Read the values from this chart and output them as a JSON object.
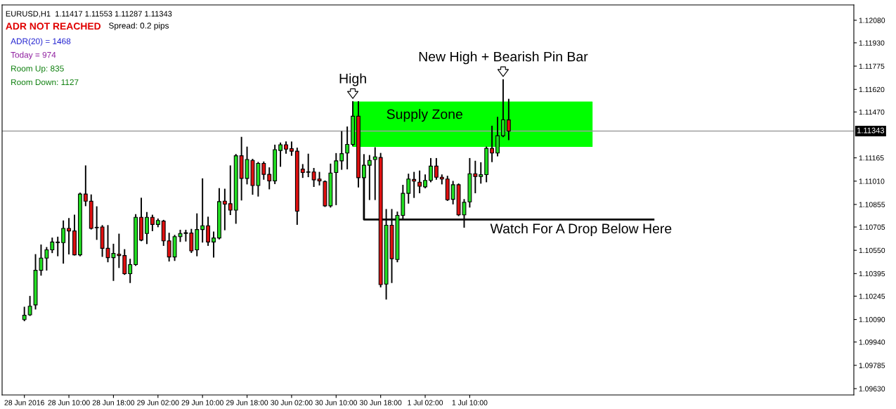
{
  "chart_data": {
    "type": "candlestick",
    "title": "EURUSD,H1  1.11417 1.11553 1.11287 1.11343",
    "x": [
      "2016-06-28T02:00",
      "2016-06-28T03:00",
      "2016-06-28T04:00",
      "2016-06-28T05:00",
      "2016-06-28T06:00",
      "2016-06-28T07:00",
      "2016-06-28T08:00",
      "2016-06-28T09:00",
      "2016-06-28T10:00",
      "2016-06-28T11:00",
      "2016-06-28T12:00",
      "2016-06-28T13:00",
      "2016-06-28T14:00",
      "2016-06-28T15:00",
      "2016-06-28T16:00",
      "2016-06-28T17:00",
      "2016-06-28T18:00",
      "2016-06-28T19:00",
      "2016-06-28T20:00",
      "2016-06-28T21:00",
      "2016-06-28T22:00",
      "2016-06-28T23:00",
      "2016-06-29T00:00",
      "2016-06-29T01:00",
      "2016-06-29T02:00",
      "2016-06-29T03:00",
      "2016-06-29T04:00",
      "2016-06-29T05:00",
      "2016-06-29T06:00",
      "2016-06-29T07:00",
      "2016-06-29T08:00",
      "2016-06-29T09:00",
      "2016-06-29T10:00",
      "2016-06-29T11:00",
      "2016-06-29T12:00",
      "2016-06-29T13:00",
      "2016-06-29T14:00",
      "2016-06-29T15:00",
      "2016-06-29T16:00",
      "2016-06-29T17:00",
      "2016-06-29T18:00",
      "2016-06-29T19:00",
      "2016-06-29T20:00",
      "2016-06-29T21:00",
      "2016-06-29T22:00",
      "2016-06-29T23:00",
      "2016-06-30T00:00",
      "2016-06-30T01:00",
      "2016-06-30T02:00",
      "2016-06-30T03:00",
      "2016-06-30T04:00",
      "2016-06-30T05:00",
      "2016-06-30T06:00",
      "2016-06-30T07:00",
      "2016-06-30T08:00",
      "2016-06-30T09:00",
      "2016-06-30T10:00",
      "2016-06-30T11:00",
      "2016-06-30T12:00",
      "2016-06-30T13:00",
      "2016-06-30T14:00",
      "2016-06-30T15:00",
      "2016-06-30T16:00",
      "2016-06-30T17:00",
      "2016-06-30T18:00",
      "2016-06-30T19:00",
      "2016-06-30T20:00",
      "2016-06-30T21:00",
      "2016-06-30T22:00",
      "2016-06-30T23:00",
      "2016-07-01T00:00",
      "2016-07-01T01:00",
      "2016-07-01T02:00",
      "2016-07-01T03:00",
      "2016-07-01T04:00",
      "2016-07-01T05:00",
      "2016-07-01T06:00",
      "2016-07-01T07:00",
      "2016-07-01T08:00",
      "2016-07-01T09:00",
      "2016-07-01T10:00",
      "2016-07-01T11:00",
      "2016-07-01T12:00",
      "2016-07-01T13:00",
      "2016-07-01T14:00",
      "2016-07-01T15:00",
      "2016-07-01T16:00",
      "2016-07-01T17:00"
    ],
    "ohlc": [
      [
        1.10089,
        1.1017,
        1.10083,
        1.10118
      ],
      [
        1.10121,
        1.10242,
        1.10118,
        1.10178
      ],
      [
        1.10187,
        1.1052,
        1.10161,
        1.10417
      ],
      [
        1.10417,
        1.10584,
        1.10386,
        1.10498
      ],
      [
        1.10498,
        1.10567,
        1.1042,
        1.10553
      ],
      [
        1.10553,
        1.1063,
        1.10536,
        1.10605
      ],
      [
        1.10601,
        1.10636,
        1.10515,
        1.10605
      ],
      [
        1.10601,
        1.10744,
        1.10466,
        1.10696
      ],
      [
        1.10696,
        1.1076,
        1.10527,
        1.10679
      ],
      [
        1.10679,
        1.10782,
        1.1052,
        1.1052
      ],
      [
        1.1052,
        1.10929,
        1.10515,
        1.10924
      ],
      [
        1.10924,
        1.1111,
        1.10848,
        1.10877
      ],
      [
        1.10876,
        1.10917,
        1.10693,
        1.10696
      ],
      [
        1.10703,
        1.10838,
        1.10624,
        1.107
      ],
      [
        1.10705,
        1.10713,
        1.10511,
        1.10563
      ],
      [
        1.10563,
        1.10713,
        1.10475,
        1.10501
      ],
      [
        1.10501,
        1.10589,
        1.10351,
        1.10529
      ],
      [
        1.10524,
        1.10656,
        1.10437,
        1.10515
      ],
      [
        1.10515,
        1.10553,
        1.10391,
        1.10394
      ],
      [
        1.10394,
        1.10489,
        1.10337,
        1.10455
      ],
      [
        1.10455,
        1.10786,
        1.10451,
        1.10769
      ],
      [
        1.10769,
        1.10895,
        1.10615,
        1.10618
      ],
      [
        1.10662,
        1.108,
        1.10596,
        1.10769
      ],
      [
        1.10769,
        1.10782,
        1.10682,
        1.10722
      ],
      [
        1.10722,
        1.10757,
        1.10708,
        1.10748
      ],
      [
        1.10744,
        1.10748,
        1.10584,
        1.10613
      ],
      [
        1.10613,
        1.10662,
        1.1048,
        1.10506
      ],
      [
        1.10506,
        1.10648,
        1.10484,
        1.10641
      ],
      [
        1.10641,
        1.10682,
        1.1061,
        1.10662
      ],
      [
        1.10662,
        1.10682,
        1.10613,
        1.10667
      ],
      [
        1.10665,
        1.10688,
        1.10537,
        1.10546
      ],
      [
        1.10553,
        1.10791,
        1.10515,
        1.10688
      ],
      [
        1.10688,
        1.11024,
        1.10606,
        1.10713
      ],
      [
        1.10713,
        1.10769,
        1.10584,
        1.10605
      ],
      [
        1.10605,
        1.1067,
        1.10506,
        1.10632
      ],
      [
        1.10632,
        1.10959,
        1.10627,
        1.10874
      ],
      [
        1.10877,
        1.10955,
        1.10688,
        1.10857
      ],
      [
        1.1086,
        1.1111,
        1.10789,
        1.10817
      ],
      [
        1.10817,
        1.11186,
        1.10731,
        1.11179
      ],
      [
        1.11179,
        1.113,
        1.10886,
        1.11028
      ],
      [
        1.11028,
        1.11235,
        1.10993,
        1.11154
      ],
      [
        1.11148,
        1.11154,
        1.10924,
        1.10981
      ],
      [
        1.10981,
        1.11133,
        1.10912,
        1.11128
      ],
      [
        1.11128,
        1.11136,
        1.11024,
        1.11055
      ],
      [
        1.11055,
        1.11097,
        1.1096,
        1.11012
      ],
      [
        1.11012,
        1.11248,
        1.10995,
        1.11219
      ],
      [
        1.11214,
        1.11262,
        1.1111,
        1.11252
      ],
      [
        1.11252,
        1.11269,
        1.11197,
        1.11223
      ],
      [
        1.11226,
        1.11269,
        1.11183,
        1.11209
      ],
      [
        1.11209,
        1.11228,
        1.10724,
        1.1081
      ],
      [
        1.1109,
        1.11119,
        1.11036,
        1.11067
      ],
      [
        1.11069,
        1.11188,
        1.11041,
        1.11072
      ],
      [
        1.11071,
        1.11093,
        1.10976,
        1.11019
      ],
      [
        1.11024,
        1.11067,
        1.10986,
        1.11012
      ],
      [
        1.11007,
        1.1101,
        1.10843,
        1.10846
      ],
      [
        1.10846,
        1.11122,
        1.10839,
        1.11064
      ],
      [
        1.11067,
        1.11192,
        1.10855,
        1.11145
      ],
      [
        1.11145,
        1.11338,
        1.1109,
        1.11193
      ],
      [
        1.11197,
        1.11369,
        1.11093,
        1.11254
      ],
      [
        1.11254,
        1.11537,
        1.11248,
        1.11442
      ],
      [
        1.11442,
        1.11537,
        1.10972,
        1.11033
      ],
      [
        1.11033,
        1.11185,
        1.11024,
        1.11116
      ],
      [
        1.11116,
        1.11179,
        1.10889,
        1.11148
      ],
      [
        1.11154,
        1.11231,
        1.10889,
        1.11171
      ],
      [
        1.11167,
        1.11193,
        1.10308,
        1.10322
      ],
      [
        1.10325,
        1.1082,
        1.10227,
        1.10717
      ],
      [
        1.10717,
        1.1082,
        1.10337,
        1.10494
      ],
      [
        1.10489,
        1.10803,
        1.10475,
        1.10782
      ],
      [
        1.10782,
        1.10981,
        1.10757,
        1.10929
      ],
      [
        1.10929,
        1.11055,
        1.10865,
        1.11024
      ],
      [
        1.11021,
        1.11067,
        1.10903,
        1.1101
      ],
      [
        1.11003,
        1.11076,
        1.10934,
        1.10976
      ],
      [
        1.10972,
        1.1105,
        1.10967,
        1.11015
      ],
      [
        1.11015,
        1.11159,
        1.11007,
        1.1111
      ],
      [
        1.1111,
        1.11159,
        1.11024,
        1.11036
      ],
      [
        1.11036,
        1.1105,
        1.10993,
        1.11024
      ],
      [
        1.11024,
        1.11041,
        1.10883,
        1.10886
      ],
      [
        1.10889,
        1.11007,
        1.1086,
        1.10986
      ],
      [
        1.10986,
        1.1099,
        1.10782,
        1.10786
      ],
      [
        1.10786,
        1.10886,
        1.10705,
        1.10869
      ],
      [
        1.10872,
        1.11159,
        1.10839,
        1.11059
      ],
      [
        1.11059,
        1.11141,
        1.10934,
        1.11041
      ],
      [
        1.11041,
        1.11131,
        1.10998,
        1.11053
      ],
      [
        1.11053,
        1.11235,
        1.11007,
        1.11228
      ],
      [
        1.11228,
        1.11374,
        1.11141,
        1.11197
      ],
      [
        1.11197,
        1.11433,
        1.11179,
        1.11312
      ],
      [
        1.11312,
        1.11683,
        1.11307,
        1.11418
      ],
      [
        1.11417,
        1.11553,
        1.11287,
        1.11343
      ]
    ],
    "series": [
      {
        "type": "area",
        "color": "#00ff00",
        "x": [
          "2016-06-30T13:00",
          "2016-07-02T08:00"
        ],
        "values": [
          null,
          null
        ],
        "lower": [
          1.1124,
          1.1124
        ],
        "upper": [
          1.11537,
          1.11537
        ]
      },
      {
        "type": "line",
        "color": "#000000",
        "x": [
          "2016-06-30T15:00",
          "2016-06-30T15:00",
          "2016-07-02T19:00"
        ],
        "values": [
          1.11024,
          1.10755,
          1.10755
        ]
      }
    ],
    "ref_lines": [
      {
        "axis": "y",
        "value": 1.11343,
        "label": "1.11343",
        "color": "#a0a0a0"
      }
    ],
    "annotations": [
      "ADR NOT REACHED",
      "Spread: 0.2 pips",
      "ADR(20) = 1468",
      "Today = 974",
      "Room Up: 835",
      "Room Down: 1127",
      "Supply Zone",
      {
        "text": "High",
        "x": "2016-06-30T13:00",
        "y": 1.11537
      },
      {
        "text": "New High + Bearish Pin Bar",
        "x": "2016-07-01T16:00",
        "y": 1.11683
      },
      {
        "text": "Watch For A Drop Below Here",
        "x": "2016-07-02T06:00",
        "y": 1.10755
      }
    ],
    "xlim": [
      "2016-06-27T22:00",
      "2016-07-04T07:00"
    ],
    "xticks": [
      {
        "value": "2016-06-28T02:00",
        "label": "28 Jun 2016"
      },
      {
        "value": "2016-06-28T10:00",
        "label": "28 Jun 10:00"
      },
      {
        "value": "2016-06-28T18:00",
        "label": "28 Jun 18:00"
      },
      {
        "value": "2016-06-29T02:00",
        "label": "29 Jun 02:00"
      },
      {
        "value": "2016-06-29T10:00",
        "label": "29 Jun 10:00"
      },
      {
        "value": "2016-06-29T18:00",
        "label": "29 Jun 18:00"
      },
      {
        "value": "2016-06-30T02:00",
        "label": "30 Jun 02:00"
      },
      {
        "value": "2016-06-30T10:00",
        "label": "30 Jun 10:00"
      },
      {
        "value": "2016-06-30T18:00",
        "label": "30 Jun 18:00"
      },
      {
        "value": "2016-07-01T02:00",
        "label": "1 Jul 02:00"
      },
      {
        "value": "2016-07-01T10:00",
        "label": "1 Jul 10:00"
      }
    ],
    "ylim": [
      1.09588,
      1.12182
    ],
    "yticks": [
      {
        "value": 1.0963,
        "label": "1.09630"
      },
      {
        "value": 1.09785,
        "label": "1.09785"
      },
      {
        "value": 1.0994,
        "label": "1.09940"
      },
      {
        "value": 1.1009,
        "label": "1.10090"
      },
      {
        "value": 1.10245,
        "label": "1.10245"
      },
      {
        "value": 1.10395,
        "label": "1.10395"
      },
      {
        "value": 1.1055,
        "label": "1.10550"
      },
      {
        "value": 1.10705,
        "label": "1.10705"
      },
      {
        "value": 1.10855,
        "label": "1.10855"
      },
      {
        "value": 1.1101,
        "label": "1.11010"
      },
      {
        "value": 1.11165,
        "label": "1.11165"
      },
      {
        "value": 1.1147,
        "label": "1.11470"
      },
      {
        "value": 1.1162,
        "label": "1.11620"
      },
      {
        "value": 1.11775,
        "label": "1.11775"
      },
      {
        "value": 1.1193,
        "label": "1.11930"
      },
      {
        "value": 1.1208,
        "label": "1.12080"
      }
    ],
    "grid": false,
    "legend": false
  }
}
